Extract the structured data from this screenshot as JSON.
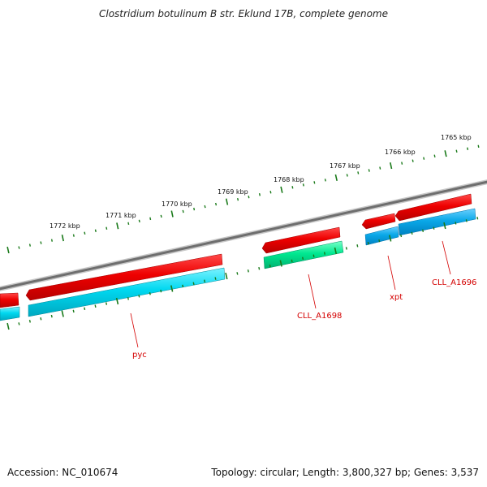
{
  "title": "Clostridium botulinum B str. Eklund 17B, complete genome",
  "footer": {
    "accession": "Accession: NC_010674",
    "summary": "Topology: circular; Length: 3,800,327 bp; Genes: 3,537"
  },
  "colors": {
    "forward_gene": "#ee0000",
    "reverse_cyan": "#00d8f0",
    "reverse_green": "#00e890",
    "reverse_blue": "#0aa8e8",
    "backbone": "#7a7a7a",
    "ticks": "#1a7a1a",
    "label": "#d40000"
  },
  "ruler": {
    "labels": [
      "1772 kbp",
      "1771 kbp",
      "1770 kbp",
      "1769 kbp",
      "1768 kbp",
      "1767 kbp",
      "1766 kbp",
      "1765 kbp"
    ]
  },
  "genes": [
    {
      "name": "pyc",
      "strand": "forward",
      "color": "forward_gene"
    },
    {
      "name": "pyc",
      "strand": "reverse",
      "color": "reverse_cyan"
    },
    {
      "name": "CLL_A1698",
      "strand": "forward",
      "color": "forward_gene"
    },
    {
      "name": "CLL_A1698",
      "strand": "reverse",
      "color": "reverse_green"
    },
    {
      "name": "xpt",
      "strand": "forward",
      "color": "forward_gene"
    },
    {
      "name": "xpt",
      "strand": "reverse",
      "color": "reverse_blue"
    },
    {
      "name": "CLL_A1696",
      "strand": "forward",
      "color": "forward_gene"
    },
    {
      "name": "CLL_A1696",
      "strand": "reverse",
      "color": "reverse_blue"
    }
  ],
  "gene_labels": [
    "pyc",
    "CLL_A1698",
    "xpt",
    "CLL_A1696"
  ]
}
